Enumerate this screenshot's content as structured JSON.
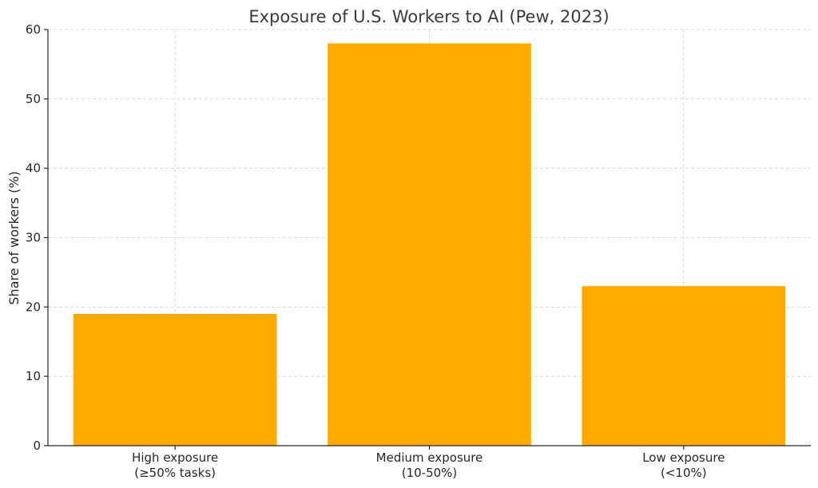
{
  "chart_data": {
    "type": "bar",
    "title": "Exposure of U.S. Workers to AI (Pew, 2023)",
    "xlabel": "",
    "ylabel": "Share of workers (%)",
    "categories": [
      [
        "High exposure",
        "(≥50% tasks)"
      ],
      [
        "Medium exposure",
        "(10-50%)"
      ],
      [
        "Low exposure",
        "(<10%)"
      ]
    ],
    "values": [
      19,
      58,
      23
    ],
    "ylim": [
      0,
      60
    ],
    "yticks": [
      0,
      10,
      20,
      30,
      40,
      50,
      60
    ],
    "grid": true,
    "bar_color": "#FFAA00"
  }
}
